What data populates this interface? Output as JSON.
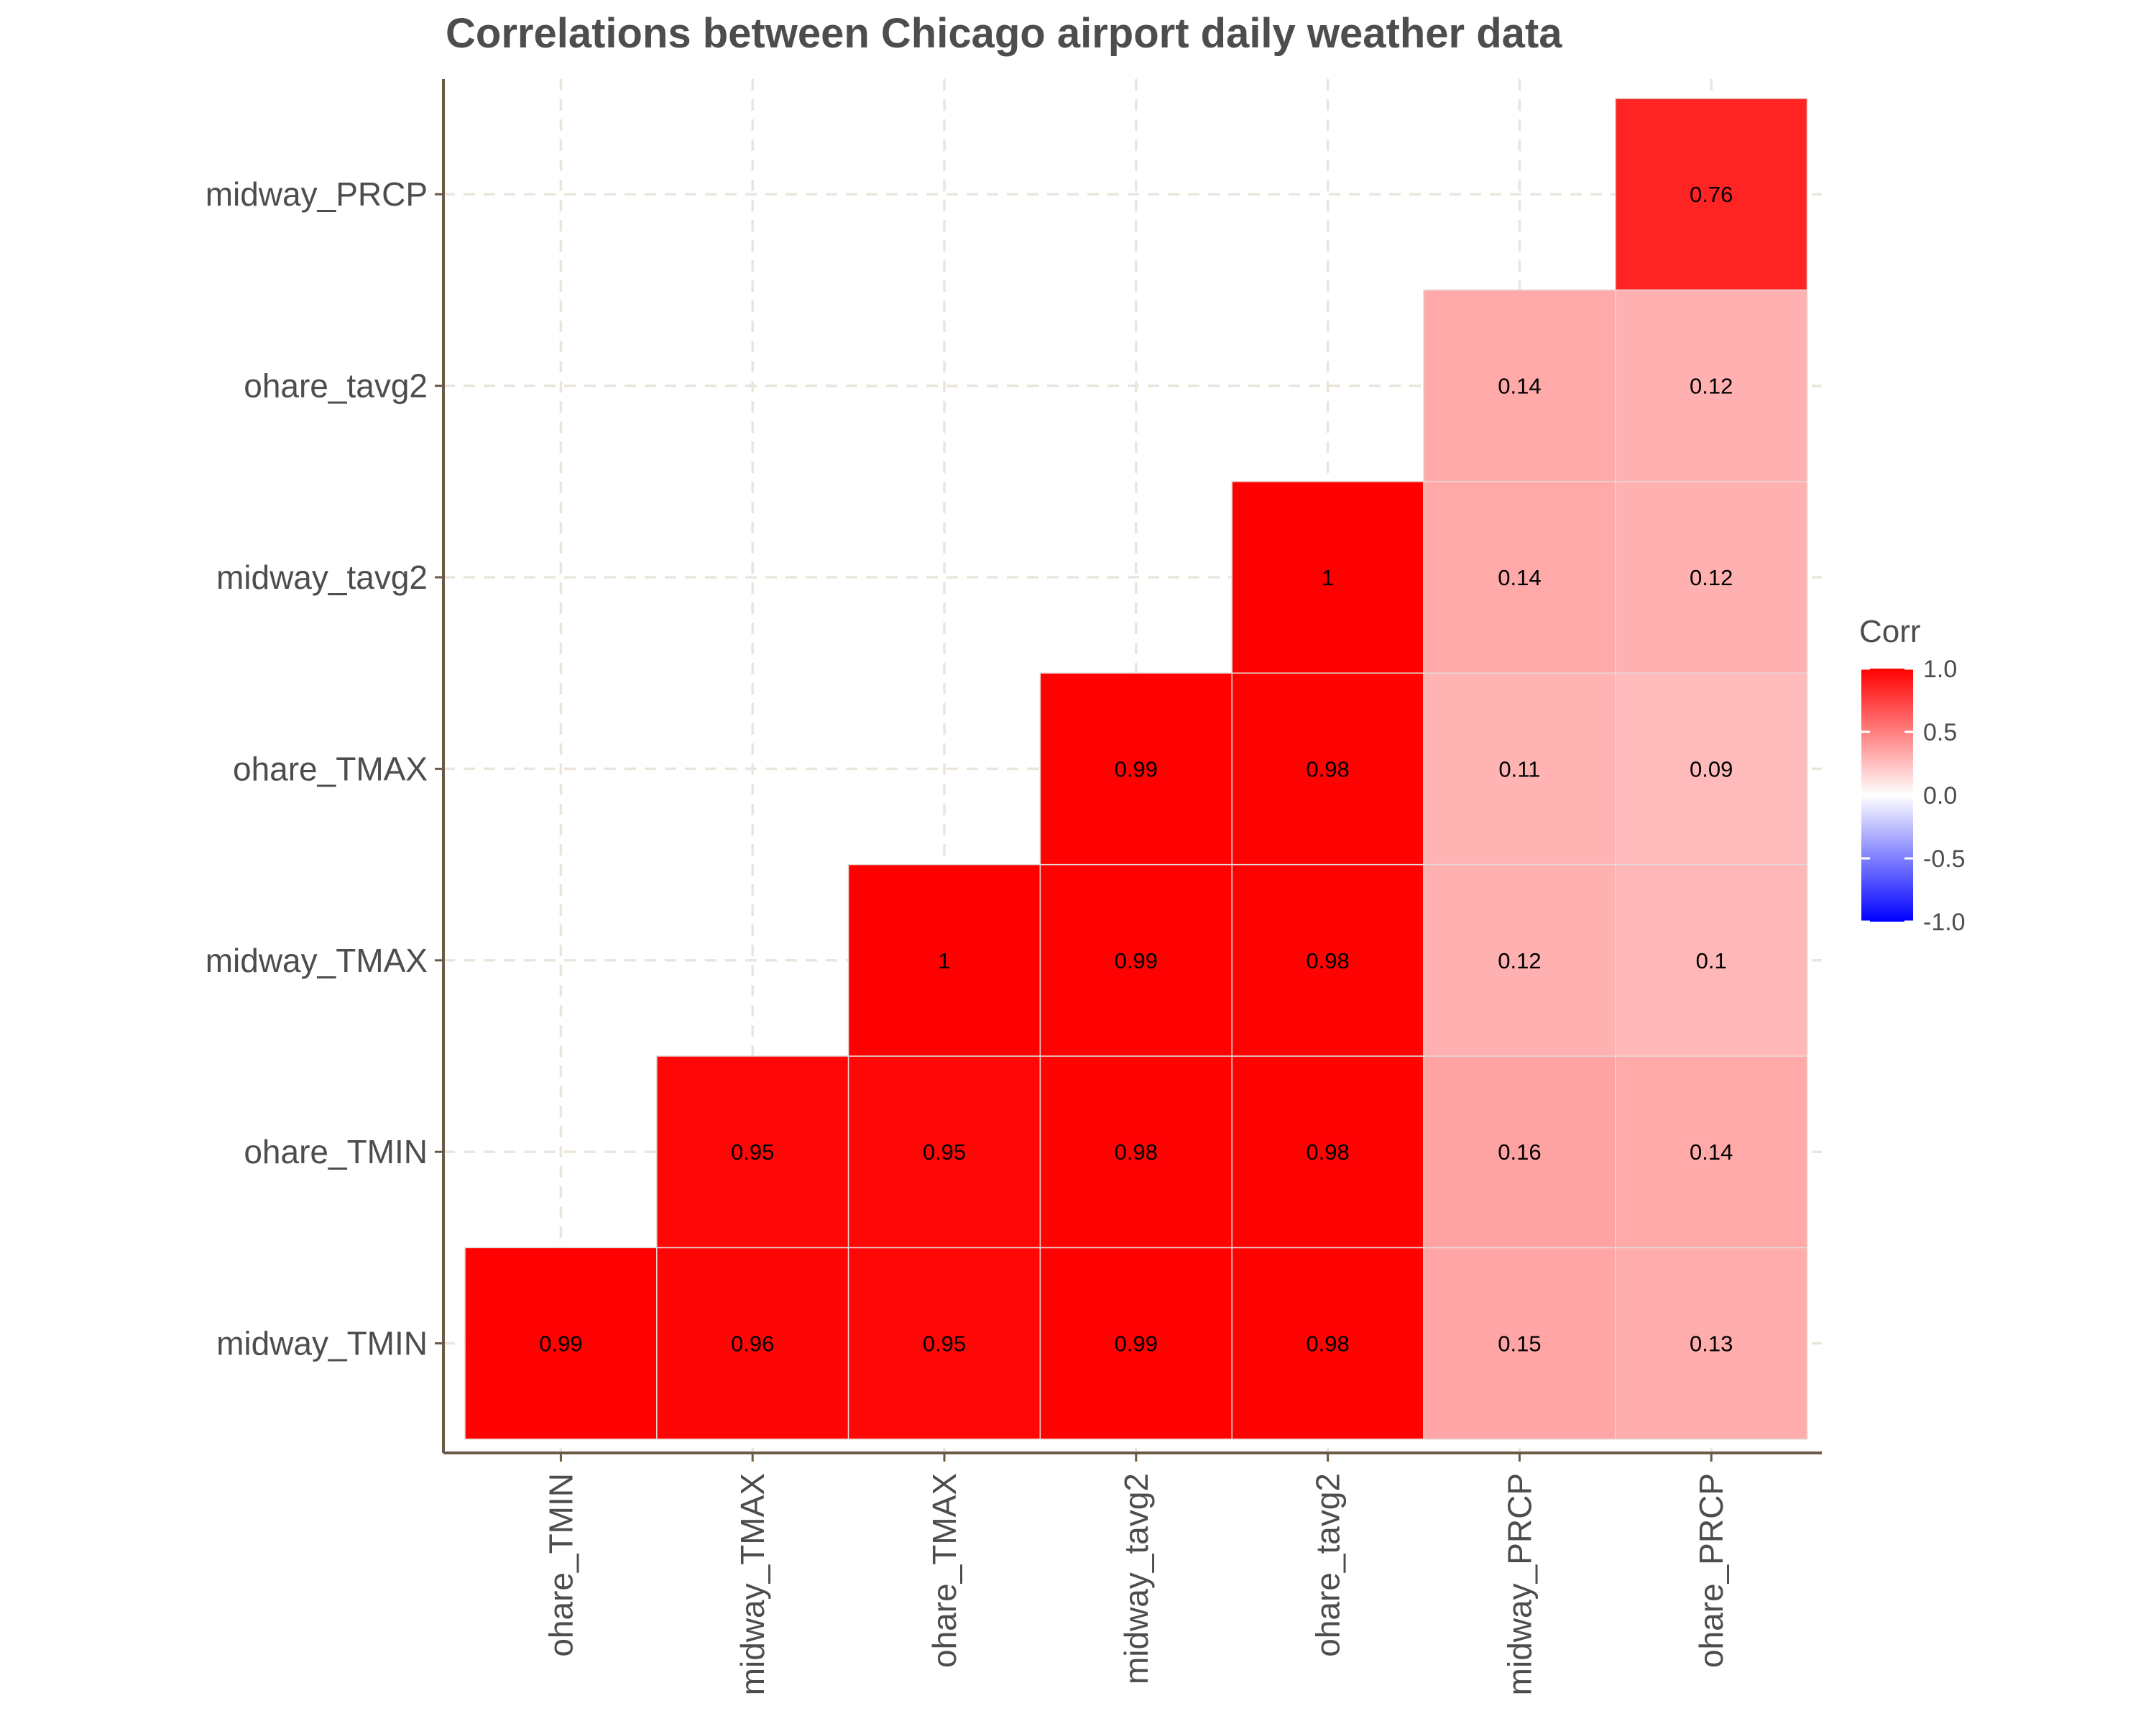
{
  "chart_data": {
    "type": "heatmap",
    "title": "Correlations between Chicago airport daily weather data",
    "x_labels": [
      "ohare_TMIN",
      "midway_TMAX",
      "ohare_TMAX",
      "midway_tavg2",
      "ohare_tavg2",
      "midway_PRCP",
      "ohare_PRCP"
    ],
    "y_labels": [
      "midway_TMIN",
      "ohare_TMIN",
      "midway_TMAX",
      "ohare_TMAX",
      "midway_tavg2",
      "ohare_tavg2",
      "midway_PRCP"
    ],
    "cells": [
      {
        "x": "ohare_TMIN",
        "y": "midway_TMIN",
        "value": 0.99,
        "label": "0.99"
      },
      {
        "x": "midway_TMAX",
        "y": "midway_TMIN",
        "value": 0.96,
        "label": "0.96"
      },
      {
        "x": "ohare_TMAX",
        "y": "midway_TMIN",
        "value": 0.95,
        "label": "0.95"
      },
      {
        "x": "midway_tavg2",
        "y": "midway_TMIN",
        "value": 0.99,
        "label": "0.99"
      },
      {
        "x": "ohare_tavg2",
        "y": "midway_TMIN",
        "value": 0.98,
        "label": "0.98"
      },
      {
        "x": "midway_PRCP",
        "y": "midway_TMIN",
        "value": 0.15,
        "label": "0.15"
      },
      {
        "x": "ohare_PRCP",
        "y": "midway_TMIN",
        "value": 0.13,
        "label": "0.13"
      },
      {
        "x": "midway_TMAX",
        "y": "ohare_TMIN",
        "value": 0.95,
        "label": "0.95"
      },
      {
        "x": "ohare_TMAX",
        "y": "ohare_TMIN",
        "value": 0.95,
        "label": "0.95"
      },
      {
        "x": "midway_tavg2",
        "y": "ohare_TMIN",
        "value": 0.98,
        "label": "0.98"
      },
      {
        "x": "ohare_tavg2",
        "y": "ohare_TMIN",
        "value": 0.98,
        "label": "0.98"
      },
      {
        "x": "midway_PRCP",
        "y": "ohare_TMIN",
        "value": 0.16,
        "label": "0.16"
      },
      {
        "x": "ohare_PRCP",
        "y": "ohare_TMIN",
        "value": 0.14,
        "label": "0.14"
      },
      {
        "x": "ohare_TMAX",
        "y": "midway_TMAX",
        "value": 1.0,
        "label": "1"
      },
      {
        "x": "midway_tavg2",
        "y": "midway_TMAX",
        "value": 0.99,
        "label": "0.99"
      },
      {
        "x": "ohare_tavg2",
        "y": "midway_TMAX",
        "value": 0.98,
        "label": "0.98"
      },
      {
        "x": "midway_PRCP",
        "y": "midway_TMAX",
        "value": 0.12,
        "label": "0.12"
      },
      {
        "x": "ohare_PRCP",
        "y": "midway_TMAX",
        "value": 0.1,
        "label": "0.1"
      },
      {
        "x": "midway_tavg2",
        "y": "ohare_TMAX",
        "value": 0.99,
        "label": "0.99"
      },
      {
        "x": "ohare_tavg2",
        "y": "ohare_TMAX",
        "value": 0.98,
        "label": "0.98"
      },
      {
        "x": "midway_PRCP",
        "y": "ohare_TMAX",
        "value": 0.11,
        "label": "0.11"
      },
      {
        "x": "ohare_PRCP",
        "y": "ohare_TMAX",
        "value": 0.09,
        "label": "0.09"
      },
      {
        "x": "ohare_tavg2",
        "y": "midway_tavg2",
        "value": 1.0,
        "label": "1"
      },
      {
        "x": "midway_PRCP",
        "y": "midway_tavg2",
        "value": 0.14,
        "label": "0.14"
      },
      {
        "x": "ohare_PRCP",
        "y": "midway_tavg2",
        "value": 0.12,
        "label": "0.12"
      },
      {
        "x": "midway_PRCP",
        "y": "ohare_tavg2",
        "value": 0.14,
        "label": "0.14"
      },
      {
        "x": "ohare_PRCP",
        "y": "ohare_tavg2",
        "value": 0.12,
        "label": "0.12"
      },
      {
        "x": "ohare_PRCP",
        "y": "midway_PRCP",
        "value": 0.76,
        "label": "0.76"
      }
    ],
    "color_scale": {
      "low": "#0000ff",
      "mid": "#ffffff",
      "high": "#ff0000",
      "limits": [
        -1.0,
        1.0
      ]
    },
    "legend": {
      "title": "Corr",
      "position": "right",
      "breaks": [
        1.0,
        0.5,
        0.0,
        -0.5,
        -1.0
      ],
      "break_labels": [
        "1.0",
        "0.5",
        "0.0",
        "-0.5",
        "-1.0"
      ]
    },
    "grid": true,
    "gridline_color": "#ebe5dc",
    "axis_line_color": "#6b5a45"
  }
}
